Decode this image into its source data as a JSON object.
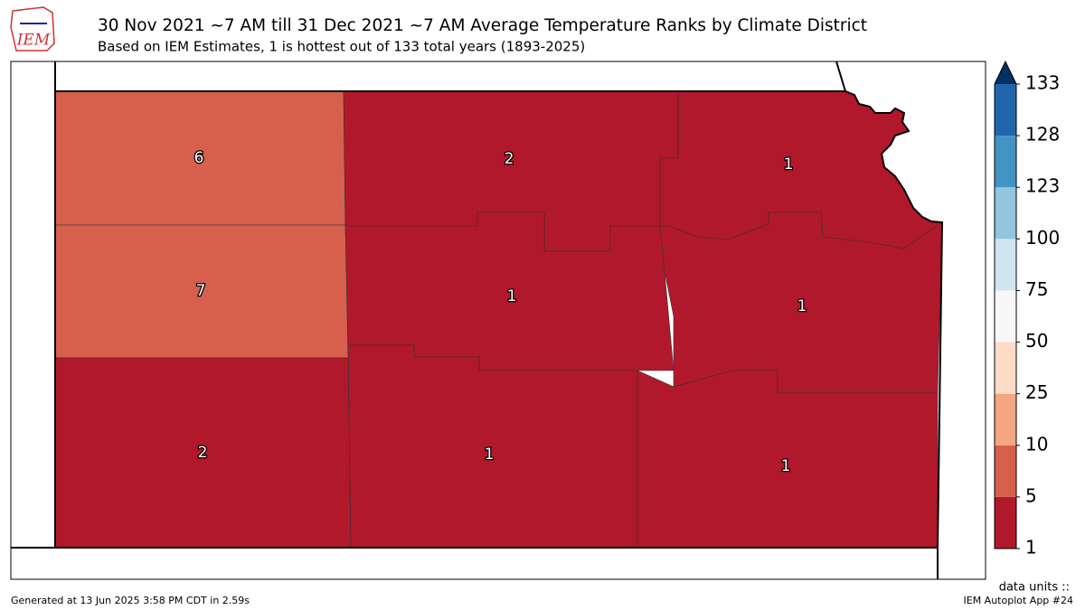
{
  "header": {
    "logo": "IEM",
    "title": "30 Nov 2021 ~7 AM till 31 Dec 2021 ~7 AM Average Temperature Ranks by Climate District",
    "subtitle": "Based on IEM Estimates, 1 is hottest out of 133 total years (1893-2025)"
  },
  "districts": [
    {
      "rank": 6
    },
    {
      "rank": 2
    },
    {
      "rank": 1
    },
    {
      "rank": 7
    },
    {
      "rank": 1
    },
    {
      "rank": 1
    },
    {
      "rank": 2
    },
    {
      "rank": 1
    },
    {
      "rank": 1
    }
  ],
  "colorbar": {
    "ticks": [
      1,
      5,
      10,
      25,
      50,
      75,
      100,
      123,
      128,
      133
    ],
    "colors": [
      "#b2182b",
      "#d6604d",
      "#f4a582",
      "#fddbc7",
      "#f7f7f7",
      "#d1e5f0",
      "#92c5de",
      "#4393c3",
      "#2166ac"
    ],
    "over_color": "#053061"
  },
  "footer": {
    "generated": "Generated at 13 Jun 2025 3:58 PM CDT in 2.59s",
    "units": "data units ::",
    "app": "IEM Autoplot App #24"
  }
}
